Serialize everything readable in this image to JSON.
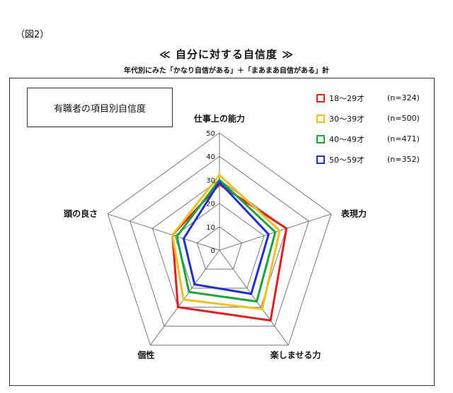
{
  "figure_label": "（図2）",
  "title": "≪ 自分に対する自信度 ≫",
  "subtitle": "年代別にみた「かなり自信がある」＋「まあまあ自信がある」計",
  "box_label": "有職者の項目別自信度",
  "colors": {
    "18-29": "#e02020",
    "30-39": "#f0c020",
    "40-49": "#1aa53a",
    "50-59": "#1f2fd0"
  },
  "chart_data": {
    "type": "radar",
    "title": "≪ 自分に対する自信度 ≫",
    "subtitle": "年代別にみた「かなり自信がある」＋「まあまあ自信がある」計",
    "axes": [
      "仕事上の能力",
      "表現力",
      "楽しませる力",
      "個性",
      "頭の良さ"
    ],
    "ticks": [
      "0",
      "10",
      "20",
      "30",
      "40",
      "50"
    ],
    "range": [
      0,
      50
    ],
    "series": [
      {
        "name": "18～29才",
        "n": "(n=324)",
        "color": "#e02020",
        "values": [
          28,
          30,
          37,
          30,
          21
        ]
      },
      {
        "name": "30～39才",
        "n": "(n=500)",
        "color": "#f0c020",
        "values": [
          32,
          27,
          31,
          26,
          21
        ]
      },
      {
        "name": "40～49才",
        "n": "(n=471)",
        "color": "#1aa53a",
        "values": [
          30,
          25,
          27,
          22,
          19
        ]
      },
      {
        "name": "50～59才",
        "n": "(n=352)",
        "color": "#1f2fd0",
        "values": [
          29,
          22,
          23,
          18,
          16
        ]
      }
    ],
    "legend_position": "top-right",
    "grid": true
  }
}
